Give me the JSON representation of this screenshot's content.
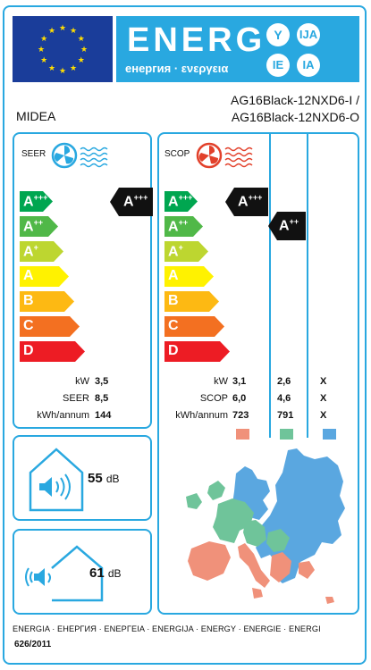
{
  "header": {
    "energy_word": "ENERG",
    "energy_subtitle": "енергия · ενεργεια",
    "lang_codes": [
      "Y",
      "IJA",
      "IE",
      "IA"
    ],
    "flag_color": "#1a3d9a",
    "accent_color": "#29a8e0"
  },
  "supplier": {
    "brand": "MIDEA",
    "model_indoor": "AG16Black-12NXD6-I /",
    "model_outdoor": "AG16Black-12NXD6-O"
  },
  "cooling": {
    "title": "SEER",
    "icon": "fan-cooling-icon",
    "scale": [
      "A+++",
      "A++",
      "A+",
      "A",
      "B",
      "C",
      "D"
    ],
    "rating": "A+++",
    "labels": [
      "kW",
      "SEER",
      "kWh/annum"
    ],
    "values": [
      "3,5",
      "8,5",
      "144"
    ]
  },
  "heating": {
    "title": "SCOP",
    "icon": "fan-heating-icon",
    "scale": [
      "A+++",
      "A++",
      "A+",
      "A",
      "B",
      "C",
      "D"
    ],
    "rating_warmer": "A+++",
    "rating_average": "A++",
    "labels": [
      "kW",
      "SCOP",
      "kWh/annum"
    ],
    "warmer": [
      "3,1",
      "6,0",
      "723"
    ],
    "average": [
      "2,6",
      "4,6",
      "791"
    ],
    "colder": [
      "X",
      "X",
      "X"
    ],
    "zone_colors": [
      "#f0917a",
      "#6fc49a",
      "#5aa7e0"
    ]
  },
  "noise": {
    "indoor": "55",
    "outdoor": "61",
    "unit": "dB"
  },
  "footer": {
    "languages": "ENERGIA · ЕНЕРГИЯ · ΕΝΕΡΓΕΙΑ · ENERGIJA · ENERGY · ENERGIE · ENERGI",
    "regulation": "626/2011"
  },
  "scale_colors": [
    "#00a650",
    "#50b848",
    "#bdd630",
    "#fff200",
    "#fdb913",
    "#f37021",
    "#ed1c24"
  ]
}
